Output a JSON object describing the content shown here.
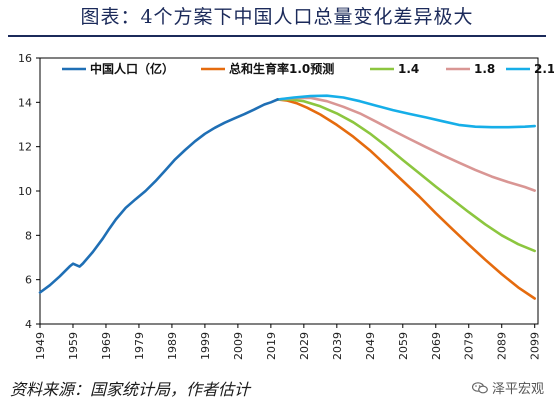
{
  "header": {
    "title": "图表：4个方案下中国人口总量变化差异极大"
  },
  "footer": {
    "source": "资料来源：国家统计局，作者估计",
    "watermark": "泽平宏观"
  },
  "chart_data": {
    "type": "line",
    "title": "图表：4个方案下中国人口总量变化差异极大",
    "xlabel": "",
    "ylabel": "",
    "xlim": [
      1949,
      2100
    ],
    "ylim": [
      4,
      16
    ],
    "yticks": [
      4,
      6,
      8,
      10,
      12,
      14,
      16
    ],
    "xticks": [
      1949,
      1959,
      1969,
      1979,
      1989,
      1999,
      2009,
      2019,
      2029,
      2039,
      2049,
      2059,
      2069,
      2079,
      2089,
      2099
    ],
    "legend_position": "top",
    "grid": false,
    "series": [
      {
        "name": "中国人口（亿）",
        "color": "#1f6fb5",
        "points": [
          [
            1949,
            5.42
          ],
          [
            1952,
            5.75
          ],
          [
            1955,
            6.15
          ],
          [
            1958,
            6.6
          ],
          [
            1959,
            6.72
          ],
          [
            1961,
            6.59
          ],
          [
            1962,
            6.73
          ],
          [
            1965,
            7.25
          ],
          [
            1968,
            7.85
          ],
          [
            1970,
            8.3
          ],
          [
            1972,
            8.72
          ],
          [
            1975,
            9.24
          ],
          [
            1978,
            9.63
          ],
          [
            1981,
            10.0
          ],
          [
            1984,
            10.44
          ],
          [
            1987,
            10.93
          ],
          [
            1990,
            11.43
          ],
          [
            1993,
            11.85
          ],
          [
            1996,
            12.24
          ],
          [
            1999,
            12.58
          ],
          [
            2002,
            12.85
          ],
          [
            2005,
            13.08
          ],
          [
            2008,
            13.28
          ],
          [
            2011,
            13.47
          ],
          [
            2014,
            13.68
          ],
          [
            2017,
            13.9
          ],
          [
            2019,
            14.0
          ],
          [
            2021,
            14.13
          ]
        ]
      },
      {
        "name": "总和生育率1.0预测",
        "color": "#e56b0e",
        "points": [
          [
            2021,
            14.13
          ],
          [
            2024,
            14.08
          ],
          [
            2027,
            13.95
          ],
          [
            2030,
            13.76
          ],
          [
            2034,
            13.45
          ],
          [
            2039,
            12.98
          ],
          [
            2044,
            12.45
          ],
          [
            2049,
            11.84
          ],
          [
            2054,
            11.15
          ],
          [
            2059,
            10.45
          ],
          [
            2064,
            9.75
          ],
          [
            2069,
            9.0
          ],
          [
            2074,
            8.28
          ],
          [
            2079,
            7.58
          ],
          [
            2084,
            6.9
          ],
          [
            2089,
            6.25
          ],
          [
            2094,
            5.65
          ],
          [
            2099,
            5.15
          ]
        ]
      },
      {
        "name": "1.4",
        "color": "#8cc63f",
        "points": [
          [
            2021,
            14.13
          ],
          [
            2025,
            14.13
          ],
          [
            2029,
            14.05
          ],
          [
            2034,
            13.82
          ],
          [
            2039,
            13.5
          ],
          [
            2044,
            13.1
          ],
          [
            2049,
            12.6
          ],
          [
            2054,
            12.02
          ],
          [
            2059,
            11.4
          ],
          [
            2064,
            10.8
          ],
          [
            2069,
            10.2
          ],
          [
            2074,
            9.62
          ],
          [
            2079,
            9.05
          ],
          [
            2084,
            8.5
          ],
          [
            2089,
            8.0
          ],
          [
            2094,
            7.6
          ],
          [
            2099,
            7.3
          ]
        ]
      },
      {
        "name": "1.8",
        "color": "#d99694",
        "points": [
          [
            2021,
            14.13
          ],
          [
            2026,
            14.2
          ],
          [
            2031,
            14.2
          ],
          [
            2036,
            14.05
          ],
          [
            2041,
            13.8
          ],
          [
            2046,
            13.5
          ],
          [
            2051,
            13.12
          ],
          [
            2056,
            12.73
          ],
          [
            2061,
            12.35
          ],
          [
            2066,
            11.98
          ],
          [
            2071,
            11.62
          ],
          [
            2076,
            11.28
          ],
          [
            2081,
            10.95
          ],
          [
            2086,
            10.65
          ],
          [
            2091,
            10.4
          ],
          [
            2096,
            10.18
          ],
          [
            2099,
            10.02
          ]
        ]
      },
      {
        "name": "2.1",
        "color": "#16aee8",
        "points": [
          [
            2021,
            14.13
          ],
          [
            2026,
            14.22
          ],
          [
            2031,
            14.28
          ],
          [
            2036,
            14.3
          ],
          [
            2041,
            14.22
          ],
          [
            2046,
            14.05
          ],
          [
            2051,
            13.85
          ],
          [
            2056,
            13.65
          ],
          [
            2061,
            13.48
          ],
          [
            2066,
            13.32
          ],
          [
            2071,
            13.15
          ],
          [
            2076,
            12.98
          ],
          [
            2081,
            12.9
          ],
          [
            2086,
            12.88
          ],
          [
            2091,
            12.88
          ],
          [
            2096,
            12.9
          ],
          [
            2099,
            12.93
          ]
        ]
      }
    ]
  }
}
